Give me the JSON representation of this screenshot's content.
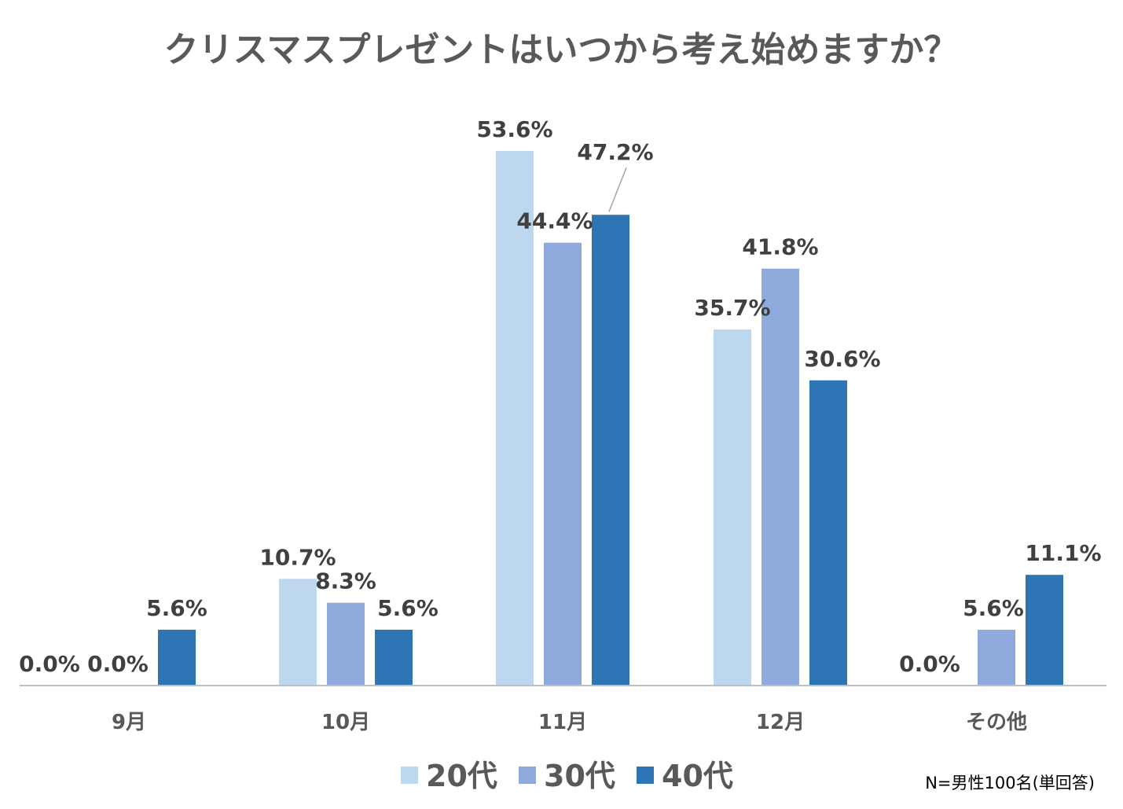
{
  "chart_data": {
    "type": "bar",
    "title": "クリスマスプレゼントはいつから考え始めますか？",
    "categories": [
      "9月",
      "10月",
      "11月",
      "12月",
      "その他"
    ],
    "series": [
      {
        "name": "20代",
        "color": "#bdd7ee",
        "values": [
          0.0,
          10.7,
          53.6,
          35.7,
          0.0
        ],
        "labels": [
          "0.0%",
          "10.7%",
          "53.6%",
          "35.7%",
          "0.0%"
        ]
      },
      {
        "name": "30代",
        "color": "#8faadc",
        "values": [
          0.0,
          8.3,
          44.4,
          41.8,
          5.6
        ],
        "labels": [
          "0.0%",
          "8.3%",
          "44.4%",
          "41.8%",
          "5.6%"
        ]
      },
      {
        "name": "40代",
        "color": "#2e75b6",
        "values": [
          5.6,
          5.6,
          47.2,
          30.6,
          11.1
        ],
        "labels": [
          "5.6%",
          "5.6%",
          "47.2%",
          "30.6%",
          "11.1%"
        ]
      }
    ],
    "ylim": [
      0,
      60
    ],
    "xlabel": "",
    "ylabel": "",
    "grid": false,
    "legend_position": "bottom",
    "note": "N=男性100名(単回答)"
  }
}
